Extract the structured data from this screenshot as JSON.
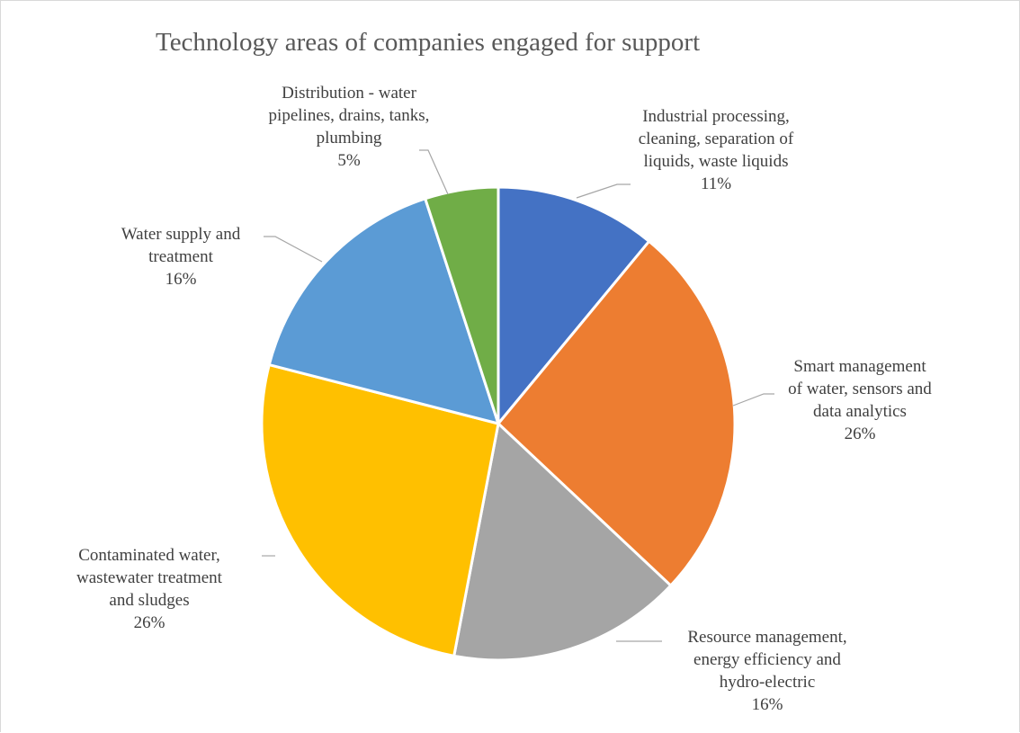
{
  "chart_data": {
    "type": "pie",
    "title": "Technology areas of companies engaged for support",
    "slices": [
      {
        "label": "Industrial processing, cleaning, separation of liquids, waste liquids",
        "label_lines": [
          "Industrial processing,",
          "cleaning, separation of",
          "liquids, waste liquids"
        ],
        "percent_text": "11%",
        "value": 11,
        "color": "#4472C4"
      },
      {
        "label": "Smart management of water, sensors and data analytics",
        "label_lines": [
          "Smart management",
          "of water, sensors and",
          "data analytics"
        ],
        "percent_text": "26%",
        "value": 26,
        "color": "#ED7D31"
      },
      {
        "label": "Resource management, energy efficiency and hydro-electric",
        "label_lines": [
          "Resource management,",
          "energy efficiency and",
          "hydro-electric"
        ],
        "percent_text": "16%",
        "value": 16,
        "color": "#A5A5A5"
      },
      {
        "label": "Contaminated water, wastewater treatment and sludges",
        "label_lines": [
          "Contaminated water,",
          "wastewater treatment",
          "and sludges"
        ],
        "percent_text": "26%",
        "value": 26,
        "color": "#FFC000"
      },
      {
        "label": "Water supply and treatment",
        "label_lines": [
          "Water supply and",
          "treatment"
        ],
        "percent_text": "16%",
        "value": 16,
        "color": "#5B9BD5"
      },
      {
        "label": "Distribution - water pipelines, drains, tanks, plumbing",
        "label_lines": [
          "Distribution - water",
          "pipelines, drains, tanks,",
          "plumbing"
        ],
        "percent_text": "5%",
        "value": 5,
        "color": "#70AD47"
      }
    ]
  }
}
